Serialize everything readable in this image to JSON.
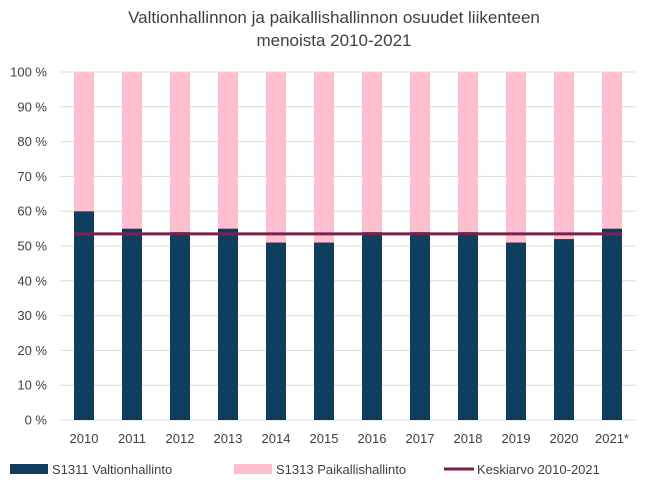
{
  "chart_data": {
    "type": "bar",
    "stacked": true,
    "title_lines": [
      "Valtionhallinnon ja paikallishallinnon osuudet liikenteen",
      "menoista 2010-2021"
    ],
    "categories": [
      "2010",
      "2011",
      "2012",
      "2013",
      "2014",
      "2015",
      "2016",
      "2017",
      "2018",
      "2019",
      "2020",
      "2021*"
    ],
    "series": [
      {
        "name": "S1311 Valtionhallinto",
        "color": "#0e3d5e",
        "values": [
          60,
          55,
          54,
          55,
          51,
          51,
          54,
          54,
          54,
          51,
          52,
          55
        ]
      },
      {
        "name": "S1313 Paikallishallinto",
        "color": "#ffbfcf",
        "values": [
          40,
          45,
          46,
          45,
          49,
          49,
          46,
          46,
          46,
          49,
          48,
          45
        ]
      }
    ],
    "reference_line": {
      "name": "Keskiarvo 2010-2021",
      "value": 53.5,
      "color": "#7b1f4e"
    },
    "ylim": [
      0,
      100
    ],
    "y_ticks": [
      0,
      10,
      20,
      30,
      40,
      50,
      60,
      70,
      80,
      90,
      100
    ],
    "y_tick_labels": [
      "0 %",
      "10 %",
      "20 %",
      "30 %",
      "40 %",
      "50 %",
      "60 %",
      "70 %",
      "80 %",
      "90 %",
      "100 %"
    ],
    "grid": true,
    "legend_position": "bottom"
  }
}
